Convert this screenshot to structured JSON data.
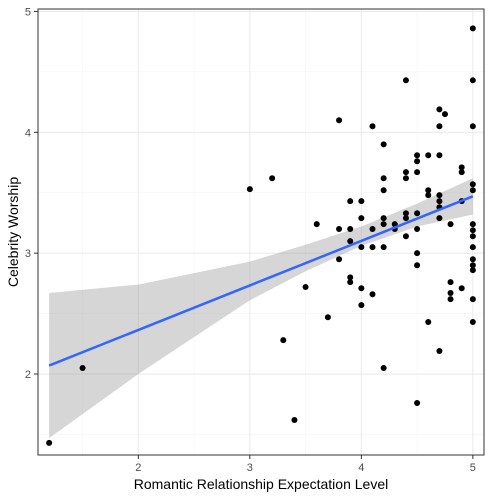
{
  "chart_data": {
    "type": "scatter",
    "title": "",
    "xlabel": "Romantic Relationship Expectation Level",
    "ylabel": "Celebrity Worship",
    "xlim": [
      1.1,
      5.1
    ],
    "ylim": [
      1.33,
      5.02
    ],
    "x_ticks": [
      2,
      3,
      4,
      5
    ],
    "y_ticks": [
      2,
      3,
      4,
      5
    ],
    "x_tick_labels": [
      "2",
      "3",
      "4",
      "5"
    ],
    "y_tick_labels": [
      "2",
      "3",
      "4",
      "5"
    ],
    "grid": true,
    "legend": "none",
    "points": [
      [
        1.2,
        1.43
      ],
      [
        1.5,
        2.05
      ],
      [
        3.0,
        3.53
      ],
      [
        3.2,
        3.62
      ],
      [
        3.3,
        2.28
      ],
      [
        3.4,
        1.62
      ],
      [
        3.5,
        2.72
      ],
      [
        3.6,
        3.24
      ],
      [
        3.7,
        2.47
      ],
      [
        3.8,
        4.1
      ],
      [
        3.8,
        3.2
      ],
      [
        3.8,
        2.95
      ],
      [
        3.9,
        3.43
      ],
      [
        3.9,
        3.2
      ],
      [
        3.9,
        3.1
      ],
      [
        3.9,
        2.8
      ],
      [
        3.9,
        2.76
      ],
      [
        4.0,
        3.43
      ],
      [
        4.0,
        3.29
      ],
      [
        4.0,
        3.05
      ],
      [
        4.0,
        2.71
      ],
      [
        4.0,
        2.57
      ],
      [
        4.1,
        4.05
      ],
      [
        4.1,
        3.2
      ],
      [
        4.1,
        3.05
      ],
      [
        4.1,
        2.66
      ],
      [
        4.2,
        3.9
      ],
      [
        4.2,
        3.62
      ],
      [
        4.2,
        3.52
      ],
      [
        4.2,
        3.29
      ],
      [
        4.2,
        3.24
      ],
      [
        4.2,
        3.05
      ],
      [
        4.2,
        2.05
      ],
      [
        4.3,
        3.24
      ],
      [
        4.3,
        3.2
      ],
      [
        4.4,
        4.43
      ],
      [
        4.4,
        3.67
      ],
      [
        4.4,
        3.62
      ],
      [
        4.4,
        3.33
      ],
      [
        4.4,
        3.29
      ],
      [
        4.4,
        3.14
      ],
      [
        4.5,
        3.81
      ],
      [
        4.5,
        3.76
      ],
      [
        4.5,
        3.67
      ],
      [
        4.5,
        3.33
      ],
      [
        4.5,
        3.2
      ],
      [
        4.5,
        3.0
      ],
      [
        4.5,
        2.9
      ],
      [
        4.5,
        1.76
      ],
      [
        4.6,
        3.81
      ],
      [
        4.6,
        3.52
      ],
      [
        4.6,
        3.48
      ],
      [
        4.6,
        2.43
      ],
      [
        4.7,
        4.19
      ],
      [
        4.7,
        4.05
      ],
      [
        4.7,
        3.81
      ],
      [
        4.7,
        3.48
      ],
      [
        4.7,
        3.43
      ],
      [
        4.7,
        3.38
      ],
      [
        4.7,
        3.29
      ],
      [
        4.7,
        2.19
      ],
      [
        4.75,
        4.15
      ],
      [
        4.8,
        3.24
      ],
      [
        4.8,
        2.76
      ],
      [
        4.8,
        2.67
      ],
      [
        4.8,
        2.62
      ],
      [
        4.9,
        3.71
      ],
      [
        4.9,
        3.67
      ],
      [
        4.9,
        3.43
      ],
      [
        4.9,
        2.71
      ],
      [
        5.0,
        4.86
      ],
      [
        5.0,
        4.43
      ],
      [
        5.0,
        4.05
      ],
      [
        5.0,
        3.57
      ],
      [
        5.0,
        3.52
      ],
      [
        5.0,
        3.24
      ],
      [
        5.0,
        3.19
      ],
      [
        5.0,
        3.14
      ],
      [
        5.0,
        3.05
      ],
      [
        5.0,
        2.95
      ],
      [
        5.0,
        2.9
      ],
      [
        5.0,
        2.86
      ],
      [
        5.0,
        2.62
      ],
      [
        5.0,
        2.43
      ]
    ],
    "trend": {
      "method": "lm",
      "x": [
        1.2,
        5.0
      ],
      "y": [
        2.07,
        3.47
      ],
      "ci_x": [
        1.2,
        2.0,
        3.0,
        3.5,
        4.0,
        4.5,
        5.0
      ],
      "ci_lower": [
        1.47,
        2.0,
        2.61,
        2.85,
        3.06,
        3.22,
        3.32
      ],
      "ci_upper": [
        2.67,
        2.74,
        2.93,
        3.07,
        3.22,
        3.41,
        3.62
      ]
    },
    "colors": {
      "point": "#000000",
      "line": "#3366ff",
      "ribbon": "#999999",
      "grid_major": "#ebebeb",
      "grid_minor": "#f5f5f5",
      "border": "#333333"
    }
  }
}
